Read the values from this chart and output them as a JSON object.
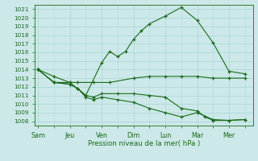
{
  "xlabel": "Pression niveau de la mer( hPa )",
  "ylim": [
    1007.5,
    1021.5
  ],
  "yticks": [
    1008,
    1009,
    1010,
    1011,
    1012,
    1013,
    1014,
    1015,
    1016,
    1017,
    1018,
    1019,
    1020,
    1021
  ],
  "xtick_labels": [
    "Sam",
    "Jeu",
    "Ven",
    "Dim",
    "Lun",
    "Mar",
    "Mer"
  ],
  "xtick_positions": [
    0,
    2,
    4,
    6,
    8,
    10,
    12
  ],
  "xlim": [
    -0.2,
    13.5
  ],
  "line_color": "#1a6b1a",
  "bg_color": "#cce8e8",
  "grid_color": "#b0d8d8",
  "lines": [
    {
      "x": [
        0,
        1,
        2,
        3,
        4,
        4.5,
        5,
        5.5,
        6,
        6.5,
        7,
        8,
        9,
        10,
        11,
        12,
        13
      ],
      "y": [
        1014,
        1013.2,
        1012.5,
        1011.0,
        1014.8,
        1016.1,
        1015.5,
        1016.1,
        1017.5,
        1018.5,
        1019.3,
        1020.2,
        1021.2,
        1019.7,
        1017.1,
        1013.8,
        1013.5
      ]
    },
    {
      "x": [
        0,
        1,
        2,
        2.5,
        3.5,
        4.5,
        6,
        7,
        8,
        9,
        10,
        11,
        12,
        13
      ],
      "y": [
        1014,
        1012.5,
        1012.5,
        1012.5,
        1012.5,
        1012.5,
        1013.0,
        1013.2,
        1013.2,
        1013.2,
        1013.2,
        1013.0,
        1013.0,
        1013.0
      ]
    },
    {
      "x": [
        0,
        1,
        2,
        2.5,
        3,
        3.5,
        4,
        5,
        6,
        7,
        8,
        9,
        10,
        10.5,
        11,
        12,
        13
      ],
      "y": [
        1014,
        1012.5,
        1012.3,
        1011.8,
        1011.0,
        1010.8,
        1011.2,
        1011.2,
        1011.2,
        1011.0,
        1010.8,
        1009.5,
        1009.2,
        1008.5,
        1008.1,
        1008.1,
        1008.2
      ]
    },
    {
      "x": [
        0,
        1,
        2,
        2.5,
        3,
        3.5,
        4,
        5,
        6,
        7,
        8,
        9,
        10,
        11,
        12,
        13
      ],
      "y": [
        1014,
        1012.5,
        1012.3,
        1011.8,
        1010.8,
        1010.5,
        1010.8,
        1010.5,
        1010.2,
        1009.5,
        1009.0,
        1008.5,
        1009.0,
        1008.2,
        1008.1,
        1008.2
      ]
    }
  ]
}
